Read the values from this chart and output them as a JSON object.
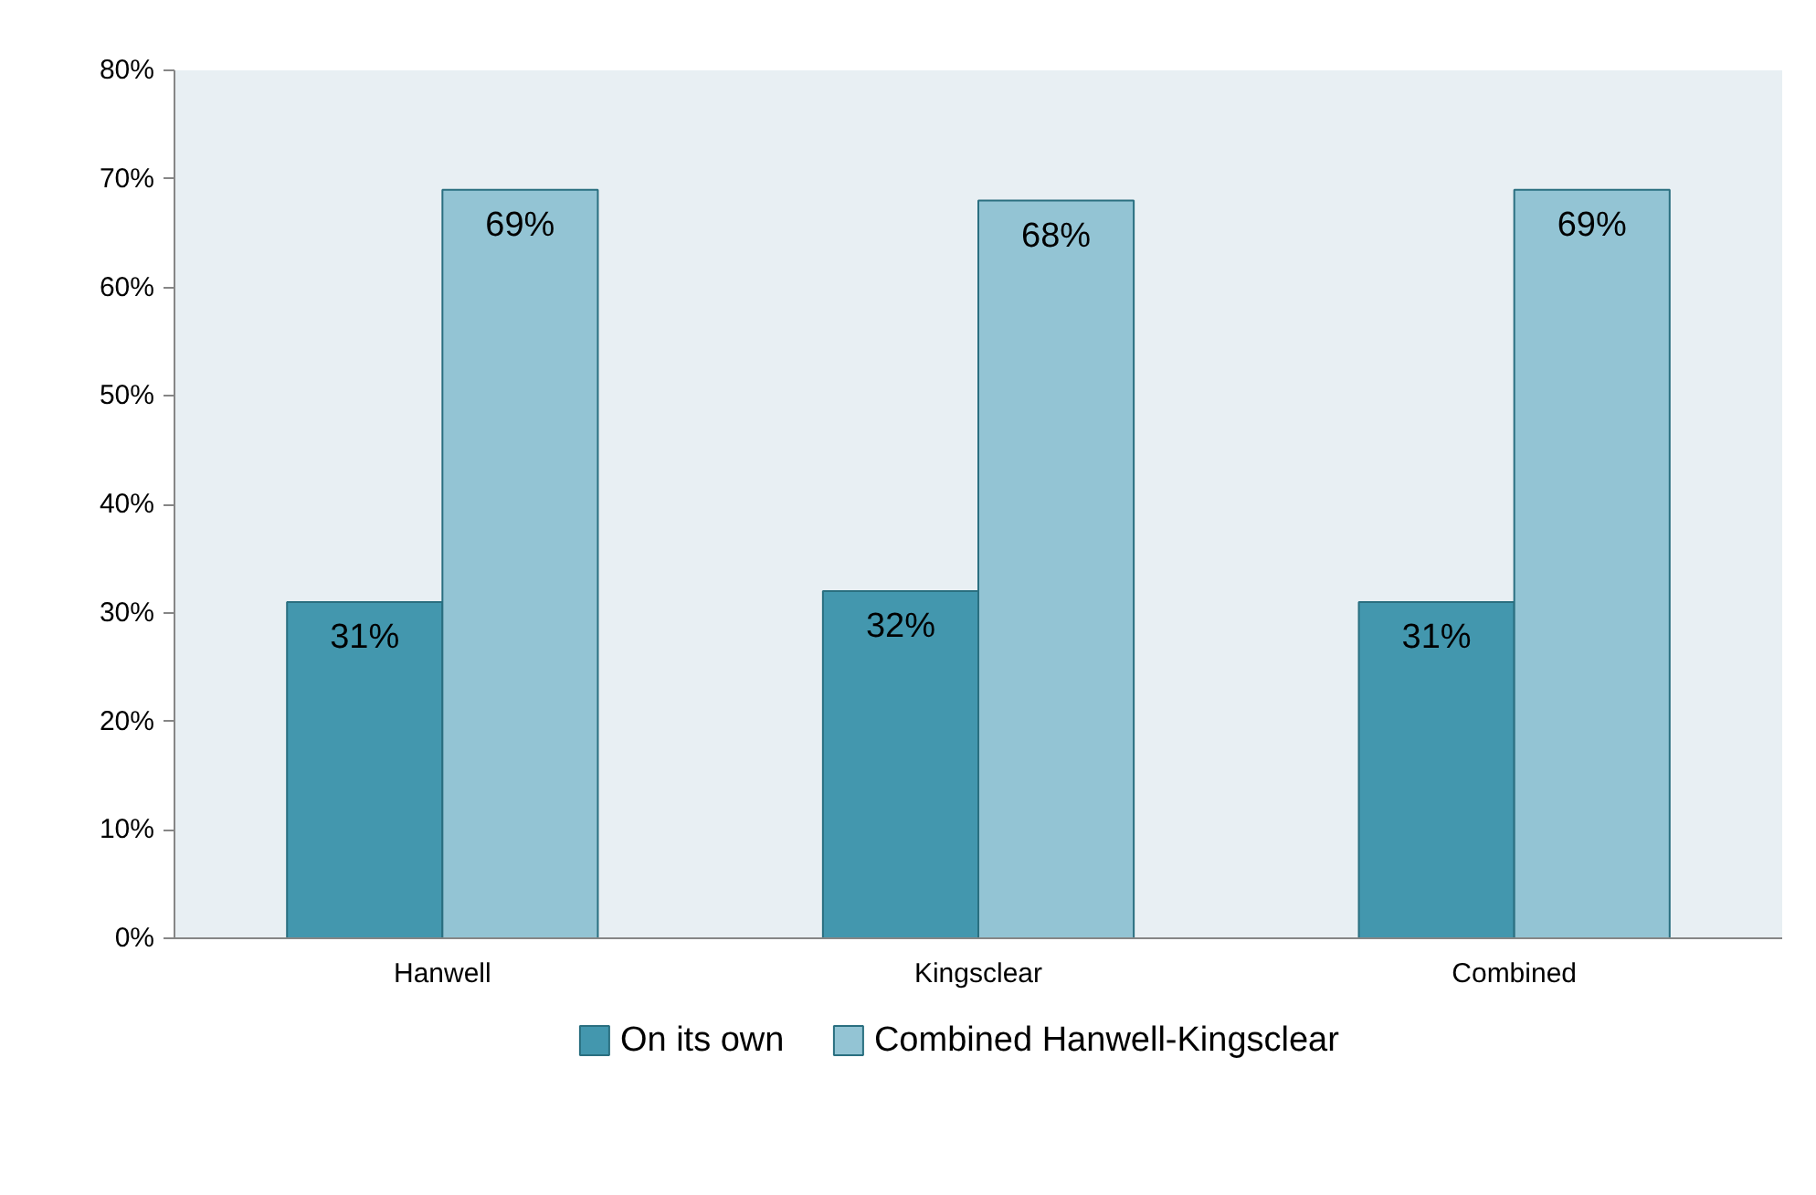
{
  "chart_data": {
    "type": "bar",
    "categories": [
      "Hanwell",
      "Kingsclear",
      "Combined"
    ],
    "series": [
      {
        "name": "On its own",
        "color": "#4397ae",
        "values": [
          31,
          32,
          31
        ],
        "value_labels": [
          "31%",
          "32%",
          "31%"
        ]
      },
      {
        "name": "Combined Hanwell-Kingsclear",
        "color": "#93c4d4",
        "values": [
          69,
          68,
          69
        ],
        "value_labels": [
          "69%",
          "68%",
          "69%"
        ]
      }
    ],
    "ylim": [
      0,
      80
    ],
    "yticks": [
      {
        "value": 0,
        "label": "0%"
      },
      {
        "value": 10,
        "label": "10%"
      },
      {
        "value": 20,
        "label": "20%"
      },
      {
        "value": 30,
        "label": "30%"
      },
      {
        "value": 40,
        "label": "40%"
      },
      {
        "value": 50,
        "label": "50%"
      },
      {
        "value": 60,
        "label": "60%"
      },
      {
        "value": 70,
        "label": "70%"
      },
      {
        "value": 80,
        "label": "80%"
      }
    ],
    "legend": "bottom"
  }
}
